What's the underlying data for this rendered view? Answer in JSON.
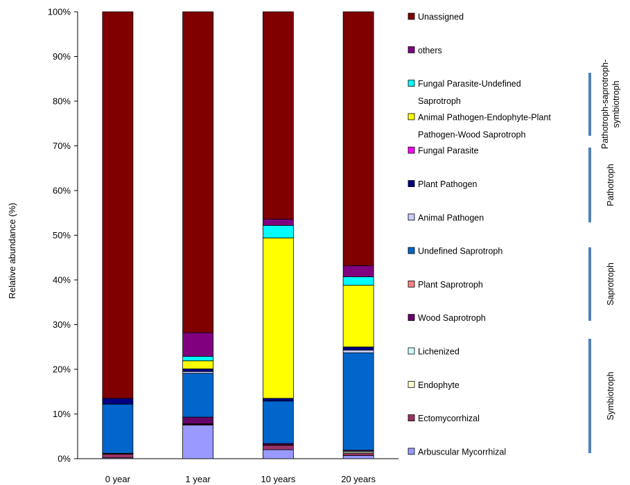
{
  "chart_data": {
    "type": "bar",
    "stacked": true,
    "title": "",
    "xlabel": "",
    "ylabel": "Relative abundance (%)",
    "ylim": [
      0,
      100
    ],
    "y_ticks": [
      "0%",
      "10%",
      "20%",
      "30%",
      "40%",
      "50%",
      "60%",
      "70%",
      "80%",
      "90%",
      "100%"
    ],
    "categories": [
      "0 year",
      "1 year",
      "10 years",
      "20 years"
    ],
    "grid": false,
    "legend_position": "right",
    "series": [
      {
        "name": "Arbuscular Mycorrhizal",
        "color": "#9999ff",
        "values": [
          0.2,
          7.5,
          2.0,
          0.7
        ]
      },
      {
        "name": "Ectomycorrhizal",
        "color": "#993366",
        "values": [
          0.8,
          0.2,
          1.0,
          0.5
        ]
      },
      {
        "name": "Endophyte",
        "color": "#ffffcc",
        "values": [
          0.1,
          0.1,
          0.1,
          0.3
        ]
      },
      {
        "name": "Lichenized",
        "color": "#ccffff",
        "values": [
          0.0,
          0.0,
          0.0,
          0.2
        ]
      },
      {
        "name": "Wood Saprotroph",
        "color": "#660066",
        "values": [
          0.0,
          1.5,
          0.3,
          0.2
        ]
      },
      {
        "name": "Plant Saprotroph",
        "color": "#ff8080",
        "values": [
          0.1,
          0.0,
          0.0,
          0.0
        ]
      },
      {
        "name": "Undefined Saprotroph",
        "color": "#0066cc",
        "values": [
          11.0,
          9.8,
          9.5,
          21.8
        ]
      },
      {
        "name": "Animal Pathogen",
        "color": "#ccccff",
        "values": [
          0.0,
          0.4,
          0.0,
          0.6
        ]
      },
      {
        "name": "Plant Pathogen",
        "color": "#000080",
        "values": [
          1.3,
          0.6,
          0.6,
          0.7
        ]
      },
      {
        "name": "Fungal Parasite",
        "color": "#ff00ff",
        "values": [
          0.0,
          0.0,
          0.0,
          0.0
        ]
      },
      {
        "name": "Animal Pathogen-Endophyte-Plant Pathogen-Wood Saprotroph",
        "color": "#ffff00",
        "values": [
          0.0,
          1.8,
          35.9,
          13.8
        ]
      },
      {
        "name": "Fungal Parasite-Undefined Saprotroph",
        "color": "#00ffff",
        "values": [
          0.0,
          1.0,
          2.8,
          1.9
        ]
      },
      {
        "name": "others",
        "color": "#800080",
        "values": [
          0.0,
          5.3,
          1.4,
          2.5
        ]
      },
      {
        "name": "Unassigned",
        "color": "#800000",
        "values": [
          86.5,
          71.8,
          46.4,
          56.8
        ]
      }
    ],
    "legend_items": [
      {
        "lines": [
          "Unassigned"
        ],
        "color": "#800000"
      },
      {
        "lines": [
          "others"
        ],
        "color": "#800080"
      },
      {
        "lines": [
          "Fungal Parasite-Undefined",
          "Saprotroph"
        ],
        "color": "#00ffff"
      },
      {
        "lines": [
          "Animal Pathogen-Endophyte-Plant",
          "Pathogen-Wood Saprotroph"
        ],
        "color": "#ffff00"
      },
      {
        "lines": [
          "Fungal Parasite"
        ],
        "color": "#ff00ff"
      },
      {
        "lines": [
          "Plant Pathogen"
        ],
        "color": "#000080"
      },
      {
        "lines": [
          "Animal Pathogen"
        ],
        "color": "#ccccff"
      },
      {
        "lines": [
          "Undefined Saprotroph"
        ],
        "color": "#0066cc"
      },
      {
        "lines": [
          "Plant Saprotroph"
        ],
        "color": "#ff8080"
      },
      {
        "lines": [
          "Wood Saprotroph"
        ],
        "color": "#660066"
      },
      {
        "lines": [
          "Lichenized"
        ],
        "color": "#ccffff"
      },
      {
        "lines": [
          "Endophyte"
        ],
        "color": "#ffffcc"
      },
      {
        "lines": [
          "Ectomycorrhizal"
        ],
        "color": "#993366"
      },
      {
        "lines": [
          "Arbuscular Mycorrhizal"
        ],
        "color": "#9999ff"
      }
    ],
    "groups": [
      {
        "label_lines": [
          "Pathotroph-saprotroph-",
          "symbiotroph"
        ],
        "bracket_color": "#4f81bd"
      },
      {
        "label_lines": [
          "Pathotroph"
        ],
        "bracket_color": "#4f81bd"
      },
      {
        "label_lines": [
          "Saprotroph"
        ],
        "bracket_color": "#4f81bd"
      },
      {
        "label_lines": [
          "Symbiotroph"
        ],
        "bracket_color": "#4f81bd"
      }
    ]
  }
}
